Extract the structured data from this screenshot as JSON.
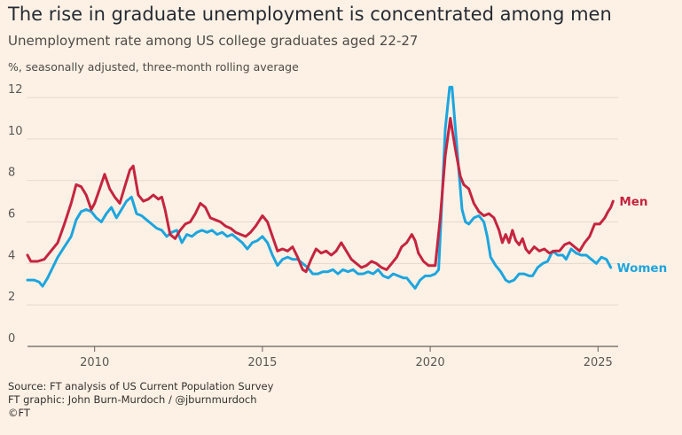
{
  "title": "The rise in graduate unemployment is concentrated among men",
  "subtitle": "Unemployment rate among US college graduates aged 22-27",
  "unit_note": "%, seasonally adjusted, three-month rolling average",
  "footer": {
    "source": "Source: FT analysis of US Current Population Survey",
    "graphic": "FT graphic: John Burn-Murdoch / @jburnmurdoch",
    "copyright": "©FT"
  },
  "colors": {
    "men": "#c6243f",
    "women": "#1ea5de",
    "grid": "#e5d9ce",
    "axis": "#66605c"
  },
  "chart_data": {
    "type": "line",
    "ylim": [
      0,
      12.5
    ],
    "yticks": [
      0,
      2,
      4,
      6,
      8,
      10,
      12
    ],
    "xlim": [
      2008.0,
      2025.6
    ],
    "xticks": [
      2010,
      2015,
      2020,
      2025
    ],
    "grid": true,
    "series": [
      {
        "name": "Men",
        "points": [
          [
            2008.0,
            4.4
          ],
          [
            2008.1,
            4.1
          ],
          [
            2008.3,
            4.1
          ],
          [
            2008.5,
            4.2
          ],
          [
            2008.7,
            4.6
          ],
          [
            2008.9,
            5.0
          ],
          [
            2009.1,
            5.9
          ],
          [
            2009.3,
            6.9
          ],
          [
            2009.45,
            7.8
          ],
          [
            2009.6,
            7.7
          ],
          [
            2009.75,
            7.3
          ],
          [
            2009.9,
            6.6
          ],
          [
            2010.0,
            6.9
          ],
          [
            2010.15,
            7.6
          ],
          [
            2010.3,
            8.3
          ],
          [
            2010.45,
            7.6
          ],
          [
            2010.6,
            7.2
          ],
          [
            2010.75,
            6.9
          ],
          [
            2010.9,
            7.7
          ],
          [
            2011.05,
            8.5
          ],
          [
            2011.15,
            8.7
          ],
          [
            2011.3,
            7.3
          ],
          [
            2011.45,
            7.0
          ],
          [
            2011.6,
            7.1
          ],
          [
            2011.75,
            7.3
          ],
          [
            2011.9,
            7.1
          ],
          [
            2012.0,
            7.2
          ],
          [
            2012.1,
            6.6
          ],
          [
            2012.25,
            5.4
          ],
          [
            2012.4,
            5.2
          ],
          [
            2012.55,
            5.6
          ],
          [
            2012.7,
            5.9
          ],
          [
            2012.85,
            6.0
          ],
          [
            2013.0,
            6.4
          ],
          [
            2013.15,
            6.9
          ],
          [
            2013.3,
            6.7
          ],
          [
            2013.45,
            6.2
          ],
          [
            2013.6,
            6.1
          ],
          [
            2013.75,
            6.0
          ],
          [
            2013.9,
            5.8
          ],
          [
            2014.05,
            5.7
          ],
          [
            2014.2,
            5.5
          ],
          [
            2014.35,
            5.4
          ],
          [
            2014.5,
            5.3
          ],
          [
            2014.65,
            5.5
          ],
          [
            2014.8,
            5.8
          ],
          [
            2015.0,
            6.3
          ],
          [
            2015.15,
            6.0
          ],
          [
            2015.3,
            5.3
          ],
          [
            2015.45,
            4.6
          ],
          [
            2015.6,
            4.7
          ],
          [
            2015.75,
            4.6
          ],
          [
            2015.9,
            4.8
          ],
          [
            2016.05,
            4.3
          ],
          [
            2016.2,
            3.7
          ],
          [
            2016.3,
            3.6
          ],
          [
            2016.45,
            4.2
          ],
          [
            2016.6,
            4.7
          ],
          [
            2016.75,
            4.5
          ],
          [
            2016.9,
            4.6
          ],
          [
            2017.05,
            4.4
          ],
          [
            2017.2,
            4.6
          ],
          [
            2017.35,
            5.0
          ],
          [
            2017.5,
            4.6
          ],
          [
            2017.65,
            4.2
          ],
          [
            2017.8,
            4.0
          ],
          [
            2017.95,
            3.8
          ],
          [
            2018.1,
            3.9
          ],
          [
            2018.25,
            4.1
          ],
          [
            2018.4,
            4.0
          ],
          [
            2018.55,
            3.8
          ],
          [
            2018.7,
            3.7
          ],
          [
            2018.85,
            4.0
          ],
          [
            2019.0,
            4.3
          ],
          [
            2019.15,
            4.8
          ],
          [
            2019.3,
            5.0
          ],
          [
            2019.45,
            5.4
          ],
          [
            2019.55,
            5.1
          ],
          [
            2019.65,
            4.5
          ],
          [
            2019.8,
            4.1
          ],
          [
            2019.95,
            3.9
          ],
          [
            2020.15,
            3.9
          ],
          [
            2020.3,
            6.2
          ],
          [
            2020.45,
            9.2
          ],
          [
            2020.6,
            11.0
          ],
          [
            2020.75,
            9.5
          ],
          [
            2020.9,
            8.2
          ],
          [
            2021.0,
            7.8
          ],
          [
            2021.15,
            7.6
          ],
          [
            2021.3,
            6.9
          ],
          [
            2021.45,
            6.5
          ],
          [
            2021.6,
            6.3
          ],
          [
            2021.75,
            6.4
          ],
          [
            2021.9,
            6.2
          ],
          [
            2022.05,
            5.6
          ],
          [
            2022.15,
            5.0
          ],
          [
            2022.25,
            5.4
          ],
          [
            2022.35,
            5.0
          ],
          [
            2022.45,
            5.6
          ],
          [
            2022.55,
            5.1
          ],
          [
            2022.65,
            4.9
          ],
          [
            2022.75,
            5.2
          ],
          [
            2022.85,
            4.7
          ],
          [
            2022.95,
            4.5
          ],
          [
            2023.1,
            4.8
          ],
          [
            2023.25,
            4.6
          ],
          [
            2023.4,
            4.7
          ],
          [
            2023.55,
            4.5
          ],
          [
            2023.7,
            4.6
          ],
          [
            2023.85,
            4.6
          ],
          [
            2024.0,
            4.9
          ],
          [
            2024.15,
            5.0
          ],
          [
            2024.3,
            4.8
          ],
          [
            2024.45,
            4.6
          ],
          [
            2024.6,
            5.0
          ],
          [
            2024.75,
            5.3
          ],
          [
            2024.9,
            5.9
          ],
          [
            2025.05,
            5.9
          ],
          [
            2025.2,
            6.2
          ],
          [
            2025.3,
            6.5
          ],
          [
            2025.38,
            6.7
          ],
          [
            2025.45,
            7.0
          ]
        ]
      },
      {
        "name": "Women",
        "points": [
          [
            2008.0,
            3.2
          ],
          [
            2008.2,
            3.2
          ],
          [
            2008.35,
            3.1
          ],
          [
            2008.45,
            2.9
          ],
          [
            2008.6,
            3.3
          ],
          [
            2008.75,
            3.8
          ],
          [
            2008.9,
            4.3
          ],
          [
            2009.1,
            4.8
          ],
          [
            2009.3,
            5.3
          ],
          [
            2009.45,
            6.1
          ],
          [
            2009.6,
            6.5
          ],
          [
            2009.75,
            6.6
          ],
          [
            2009.9,
            6.5
          ],
          [
            2010.05,
            6.2
          ],
          [
            2010.2,
            6.0
          ],
          [
            2010.35,
            6.4
          ],
          [
            2010.5,
            6.7
          ],
          [
            2010.65,
            6.2
          ],
          [
            2010.8,
            6.6
          ],
          [
            2010.95,
            7.0
          ],
          [
            2011.1,
            7.2
          ],
          [
            2011.25,
            6.4
          ],
          [
            2011.4,
            6.3
          ],
          [
            2011.55,
            6.1
          ],
          [
            2011.7,
            5.9
          ],
          [
            2011.85,
            5.7
          ],
          [
            2012.0,
            5.6
          ],
          [
            2012.15,
            5.3
          ],
          [
            2012.3,
            5.5
          ],
          [
            2012.45,
            5.6
          ],
          [
            2012.6,
            5.0
          ],
          [
            2012.75,
            5.4
          ],
          [
            2012.9,
            5.3
          ],
          [
            2013.05,
            5.5
          ],
          [
            2013.2,
            5.6
          ],
          [
            2013.35,
            5.5
          ],
          [
            2013.5,
            5.6
          ],
          [
            2013.65,
            5.4
          ],
          [
            2013.8,
            5.5
          ],
          [
            2013.95,
            5.3
          ],
          [
            2014.1,
            5.4
          ],
          [
            2014.25,
            5.2
          ],
          [
            2014.4,
            5.0
          ],
          [
            2014.55,
            4.7
          ],
          [
            2014.7,
            5.0
          ],
          [
            2014.85,
            5.1
          ],
          [
            2015.0,
            5.3
          ],
          [
            2015.15,
            5.0
          ],
          [
            2015.3,
            4.4
          ],
          [
            2015.45,
            3.9
          ],
          [
            2015.6,
            4.2
          ],
          [
            2015.75,
            4.3
          ],
          [
            2015.9,
            4.2
          ],
          [
            2016.05,
            4.2
          ],
          [
            2016.2,
            4.0
          ],
          [
            2016.35,
            3.8
          ],
          [
            2016.5,
            3.5
          ],
          [
            2016.65,
            3.5
          ],
          [
            2016.8,
            3.6
          ],
          [
            2016.95,
            3.6
          ],
          [
            2017.1,
            3.7
          ],
          [
            2017.25,
            3.5
          ],
          [
            2017.4,
            3.7
          ],
          [
            2017.55,
            3.6
          ],
          [
            2017.7,
            3.7
          ],
          [
            2017.85,
            3.5
          ],
          [
            2018.0,
            3.5
          ],
          [
            2018.15,
            3.6
          ],
          [
            2018.3,
            3.5
          ],
          [
            2018.45,
            3.7
          ],
          [
            2018.6,
            3.4
          ],
          [
            2018.75,
            3.3
          ],
          [
            2018.9,
            3.5
          ],
          [
            2019.05,
            3.4
          ],
          [
            2019.2,
            3.3
          ],
          [
            2019.3,
            3.3
          ],
          [
            2019.45,
            3.0
          ],
          [
            2019.55,
            2.8
          ],
          [
            2019.7,
            3.2
          ],
          [
            2019.85,
            3.4
          ],
          [
            2020.0,
            3.4
          ],
          [
            2020.15,
            3.5
          ],
          [
            2020.25,
            3.7
          ],
          [
            2020.35,
            7.0
          ],
          [
            2020.45,
            10.5
          ],
          [
            2020.58,
            12.5
          ],
          [
            2020.65,
            12.5
          ],
          [
            2020.75,
            10.5
          ],
          [
            2020.85,
            8.5
          ],
          [
            2020.95,
            6.6
          ],
          [
            2021.05,
            6.0
          ],
          [
            2021.15,
            5.9
          ],
          [
            2021.3,
            6.2
          ],
          [
            2021.45,
            6.3
          ],
          [
            2021.6,
            6.0
          ],
          [
            2021.7,
            5.3
          ],
          [
            2021.8,
            4.3
          ],
          [
            2021.95,
            3.9
          ],
          [
            2022.1,
            3.6
          ],
          [
            2022.25,
            3.2
          ],
          [
            2022.35,
            3.1
          ],
          [
            2022.5,
            3.2
          ],
          [
            2022.65,
            3.5
          ],
          [
            2022.8,
            3.5
          ],
          [
            2022.95,
            3.4
          ],
          [
            2023.05,
            3.4
          ],
          [
            2023.2,
            3.8
          ],
          [
            2023.35,
            4.0
          ],
          [
            2023.5,
            4.1
          ],
          [
            2023.65,
            4.6
          ],
          [
            2023.8,
            4.4
          ],
          [
            2023.95,
            4.4
          ],
          [
            2024.05,
            4.2
          ],
          [
            2024.2,
            4.7
          ],
          [
            2024.35,
            4.5
          ],
          [
            2024.5,
            4.4
          ],
          [
            2024.65,
            4.4
          ],
          [
            2024.8,
            4.2
          ],
          [
            2024.95,
            4.0
          ],
          [
            2025.1,
            4.3
          ],
          [
            2025.25,
            4.2
          ],
          [
            2025.38,
            3.8
          ]
        ]
      }
    ]
  }
}
